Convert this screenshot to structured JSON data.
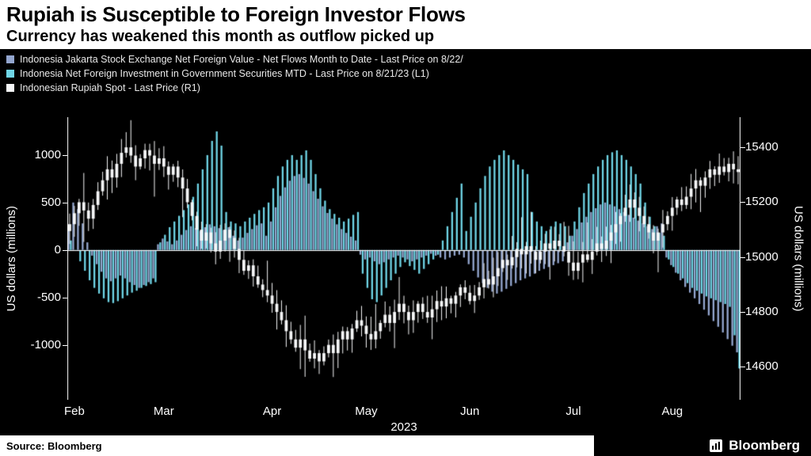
{
  "header": {
    "title": "Rupiah is Susceptible to Foreign Investor Flows",
    "subtitle": "Currency has weakened this month as outflow picked up"
  },
  "legend": [
    {
      "label": "Indonesia Jakarta Stock Exchange Net Foreign Value - Net Flows Month to Date - Last Price on 8/22/",
      "color": "#93a6cf"
    },
    {
      "label": "Indonesia Net Foreign Investment in Government Securities MTD - Last Price on 8/21/23 (L1)",
      "color": "#6fd5e6"
    },
    {
      "label": "Indonesian Rupiah Spot - Last Price (R1)",
      "color": "#f5f6f7"
    }
  ],
  "footer": {
    "source": "Source: Bloomberg",
    "brand": "Bloomberg"
  },
  "chart_data": {
    "type": "mixed_bar_candlestick",
    "title": "Rupiah is Susceptible to Foreign Investor Flows",
    "subtitle": "Currency has weakened this month as outflow picked up",
    "x_axis": {
      "year": "2023",
      "num_points": 143,
      "months": [
        {
          "label": "Feb",
          "start": 0
        },
        {
          "label": "Mar",
          "start": 19
        },
        {
          "label": "Apr",
          "start": 42
        },
        {
          "label": "May",
          "start": 62
        },
        {
          "label": "Jun",
          "start": 84
        },
        {
          "label": "Jul",
          "start": 106
        },
        {
          "label": "Aug",
          "start": 127
        }
      ]
    },
    "left_axis": {
      "title": "US dollars  (millions)",
      "ticks": [
        1000,
        500,
        0,
        -500,
        -1000
      ],
      "range": [
        -1580,
        1400
      ]
    },
    "right_axis": {
      "title": "US dollars  (millions)",
      "ticks": [
        15400,
        15200,
        15000,
        14800,
        14600
      ],
      "range": [
        14480,
        15510
      ]
    },
    "series": [
      {
        "name": "Indonesia Jakarta Stock Exchange Net Foreign Value - Net Flows Month to Date",
        "type": "bar",
        "axis": "left",
        "color": "#93a6cf",
        "values": [
          250,
          500,
          430,
          280,
          80,
          -60,
          -150,
          -230,
          -300,
          -330,
          -300,
          -270,
          -300,
          -340,
          -370,
          -400,
          -370,
          -340,
          -300,
          60,
          120,
          90,
          60,
          100,
          160,
          210,
          250,
          230,
          200,
          240,
          270,
          250,
          230,
          210,
          240,
          150,
          100,
          130,
          180,
          220,
          260,
          280,
          150,
          300,
          450,
          570,
          660,
          730,
          780,
          800,
          760,
          700,
          620,
          540,
          460,
          390,
          330,
          270,
          220,
          180,
          140,
          100,
          -50,
          -100,
          -80,
          -120,
          -150,
          -130,
          -100,
          -80,
          -60,
          -80,
          -100,
          -120,
          -100,
          -80,
          -60,
          -40,
          -60,
          -80,
          -100,
          -80,
          -60,
          -50,
          -80,
          -150,
          -220,
          -290,
          -350,
          -400,
          -440,
          -460,
          -440,
          -410,
          -380,
          -350,
          -320,
          -300,
          -280,
          -250,
          -220,
          -200,
          -180,
          -160,
          -140,
          -120,
          80,
          150,
          220,
          290,
          350,
          400,
          440,
          480,
          500,
          480,
          460,
          430,
          400,
          370,
          340,
          310,
          280,
          250,
          220,
          250,
          280,
          -80,
          -160,
          -240,
          -320,
          -390,
          -450,
          -510,
          -570,
          -630,
          -690,
          -750,
          -810,
          -870,
          -940,
          -1010,
          -1080
        ]
      },
      {
        "name": "Indonesia Net Foreign Investment in Government Securities MTD",
        "type": "bar",
        "axis": "left",
        "color": "#6fd5e6",
        "values": [
          100,
          0,
          -120,
          -220,
          -320,
          -400,
          -460,
          -510,
          -550,
          -560,
          -540,
          -510,
          -480,
          -450,
          -430,
          -400,
          -380,
          -360,
          -340,
          80,
          160,
          240,
          300,
          360,
          420,
          480,
          560,
          700,
          850,
          1000,
          1150,
          1250,
          1100,
          400,
          300,
          280,
          250,
          300,
          340,
          380,
          420,
          450,
          500,
          650,
          780,
          880,
          950,
          1000,
          950,
          1000,
          1050,
          950,
          800,
          650,
          520,
          430,
          380,
          340,
          300,
          330,
          370,
          400,
          -250,
          -400,
          -520,
          -550,
          -480,
          -400,
          -320,
          -250,
          -180,
          -130,
          -170,
          -210,
          -250,
          -200,
          -150,
          -100,
          -50,
          100,
          250,
          400,
          550,
          700,
          200,
          350,
          500,
          650,
          780,
          880,
          950,
          1000,
          1050,
          1000,
          950,
          900,
          850,
          800,
          400,
          300,
          250,
          200,
          250,
          300,
          280,
          250,
          150,
          300,
          450,
          600,
          700,
          800,
          880,
          950,
          1000,
          1030,
          1050,
          1000,
          950,
          880,
          800,
          700,
          500,
          350,
          250,
          180,
          150,
          -100,
          -180,
          -250,
          -300,
          -350,
          -400,
          -430,
          -460,
          -490,
          -510,
          -530,
          -550,
          -570,
          -600,
          -900,
          -1250
        ]
      },
      {
        "name": "Indonesian Rupiah Spot - Last Price",
        "type": "candlestick",
        "axis": "right",
        "color": "#f5f6f7",
        "close": [
          15120,
          15160,
          15200,
          15170,
          15140,
          15190,
          15240,
          15280,
          15320,
          15290,
          15340,
          15380,
          15400,
          15370,
          15330,
          15360,
          15390,
          15370,
          15340,
          15360,
          15330,
          15300,
          15330,
          15290,
          15250,
          15200,
          15150,
          15100,
          15060,
          15090,
          15050,
          15020,
          15060,
          15100,
          15070,
          15030,
          14990,
          14950,
          14970,
          14930,
          14900,
          14880,
          14860,
          14830,
          14800,
          14770,
          14730,
          14700,
          14670,
          14700,
          14660,
          14630,
          14650,
          14620,
          14650,
          14680,
          14650,
          14700,
          14730,
          14700,
          14740,
          14770,
          14750,
          14720,
          14700,
          14730,
          14760,
          14790,
          14760,
          14800,
          14830,
          14800,
          14770,
          14800,
          14830,
          14800,
          14780,
          14810,
          14840,
          14820,
          14850,
          14830,
          14860,
          14890,
          14870,
          14840,
          14860,
          14890,
          14920,
          14900,
          14930,
          14960,
          14990,
          14970,
          15000,
          15030,
          15010,
          15040,
          15020,
          14990,
          15020,
          15050,
          15030,
          15060,
          15040,
          15020,
          14980,
          14950,
          14980,
          15010,
          14990,
          15020,
          15050,
          15030,
          15060,
          15090,
          15120,
          15150,
          15180,
          15210,
          15180,
          15150,
          15120,
          15090,
          15060,
          15090,
          15120,
          15150,
          15180,
          15210,
          15190,
          15220,
          15250,
          15280,
          15260,
          15290,
          15320,
          15300,
          15330,
          15310,
          15340,
          15320,
          15310
        ]
      }
    ]
  }
}
